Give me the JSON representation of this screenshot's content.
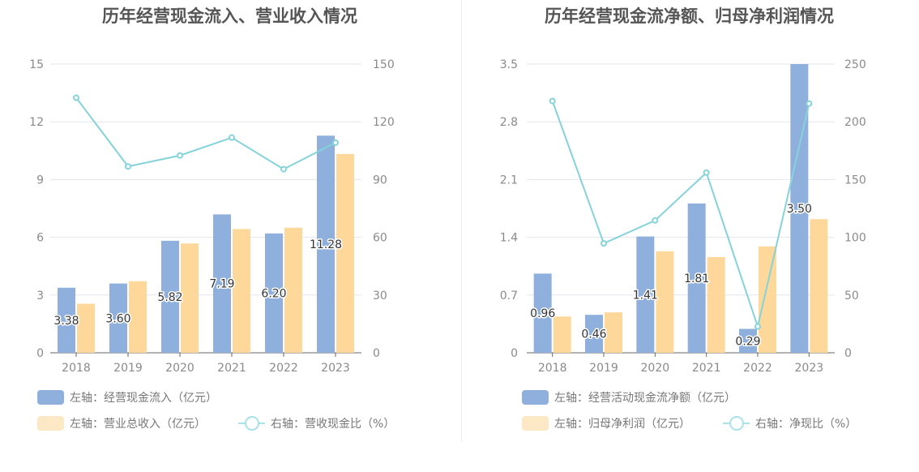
{
  "colors": {
    "bar1": "#8fb0dd",
    "bar2": "#fdd89a",
    "line": "#85d3da",
    "grid": "#e3e6f0",
    "axis": "#666666",
    "legend_bar2": "#fde8c6"
  },
  "chart_data": [
    {
      "type": "bar",
      "title": "历年经营现金流入、营业收入情况",
      "categories": [
        "2018",
        "2019",
        "2020",
        "2021",
        "2022",
        "2023"
      ],
      "left_axis": {
        "min": 0,
        "max": 15,
        "ticks": [
          "0",
          "3",
          "6",
          "9",
          "12",
          "15"
        ]
      },
      "right_axis": {
        "min": 0,
        "max": 150,
        "ticks": [
          "0",
          "30",
          "60",
          "90",
          "120",
          "150"
        ]
      },
      "series": [
        {
          "name": "左轴：经营现金流入（亿元）",
          "axis": "left",
          "kind": "bar",
          "values": [
            3.38,
            3.6,
            5.82,
            7.19,
            6.2,
            11.28
          ],
          "labels": [
            "3.38",
            "3.60",
            "5.82",
            "7.19",
            "6.20",
            "11.28"
          ]
        },
        {
          "name": "左轴：营业总收入（亿元）",
          "axis": "left",
          "kind": "bar",
          "values": [
            2.55,
            3.72,
            5.68,
            6.43,
            6.5,
            10.33
          ]
        },
        {
          "name": "右轴：营收现金比（%）",
          "axis": "right",
          "kind": "line",
          "values": [
            132.5,
            96.8,
            102.5,
            111.8,
            95.4,
            109.2
          ]
        }
      ],
      "legend_position": "bottom-left"
    },
    {
      "type": "bar",
      "title": "历年经营现金流净额、归母净利润情况",
      "categories": [
        "2018",
        "2019",
        "2020",
        "2021",
        "2022",
        "2023"
      ],
      "left_axis": {
        "min": 0,
        "max": 3.5,
        "ticks": [
          "0",
          "0.7",
          "1.4",
          "2.1",
          "2.8",
          "3.5"
        ]
      },
      "right_axis": {
        "min": 0,
        "max": 250,
        "ticks": [
          "0",
          "50",
          "100",
          "150",
          "200",
          "250"
        ]
      },
      "series": [
        {
          "name": "左轴：经营活动现金流净额（亿元）",
          "axis": "left",
          "kind": "bar",
          "values": [
            0.96,
            0.46,
            1.41,
            1.81,
            0.29,
            3.5
          ],
          "labels": [
            "0.96",
            "0.46",
            "1.41",
            "1.81",
            "0.29",
            "3.50"
          ]
        },
        {
          "name": "左轴：归母净利润（亿元）",
          "axis": "left",
          "kind": "bar",
          "values": [
            0.44,
            0.49,
            1.23,
            1.16,
            1.29,
            1.62
          ]
        },
        {
          "name": "右轴：净现比（%）",
          "axis": "right",
          "kind": "line",
          "values": [
            218.0,
            94.7,
            114.6,
            156.0,
            22.7,
            215.8
          ]
        }
      ],
      "legend_position": "bottom-left"
    }
  ]
}
